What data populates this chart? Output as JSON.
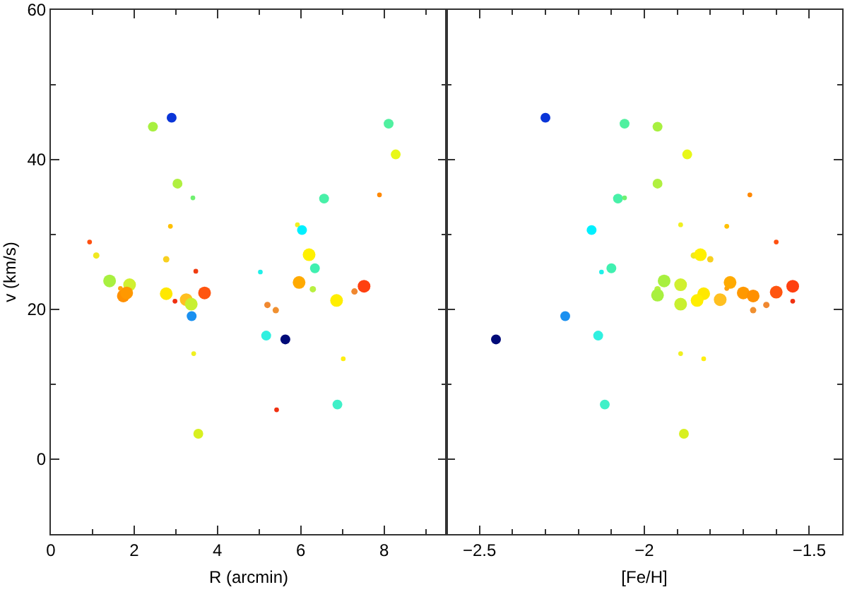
{
  "chart_data": [
    {
      "type": "bubble",
      "xlabel": "R (arcmin)",
      "ylabel": "v (km/s)",
      "marker": "circle",
      "x": [
        2.9,
        2.45,
        8.11,
        8.28,
        3.04,
        3.41,
        6.56,
        7.89,
        2.87,
        5.92,
        6.03,
        0.93,
        1.09,
        2.77,
        6.2,
        6.34,
        5.03,
        3.48,
        1.41,
        1.89,
        1.67,
        1.74,
        1.82,
        2.77,
        2.98,
        3.25,
        3.37,
        3.69,
        3.38,
        3.43,
        3.54,
        5.17,
        5.63,
        5.2,
        5.4,
        5.96,
        6.29,
        6.86,
        7.29,
        7.52,
        7.02,
        5.42,
        6.88
      ],
      "values": [
        45.6,
        44.4,
        44.8,
        40.7,
        36.8,
        34.9,
        34.8,
        35.3,
        31.1,
        31.3,
        30.6,
        29.0,
        27.2,
        26.7,
        27.3,
        25.5,
        25.0,
        25.1,
        23.8,
        23.3,
        22.8,
        21.8,
        22.2,
        22.1,
        21.1,
        21.3,
        20.7,
        22.2,
        19.1,
        14.1,
        3.4,
        16.5,
        16.0,
        20.6,
        19.9,
        23.6,
        22.7,
        21.2,
        22.4,
        23.1,
        13.4,
        6.6,
        7.3
      ],
      "sizes": [
        0.6,
        0.6,
        0.6,
        0.6,
        0.6,
        0.14,
        0.6,
        0.14,
        0.14,
        0.14,
        0.6,
        0.14,
        0.25,
        0.25,
        1,
        0.6,
        0.14,
        0.14,
        1,
        1,
        0.14,
        1,
        1,
        1,
        0.14,
        1,
        1,
        1,
        0.6,
        0.14,
        0.6,
        0.6,
        0.6,
        0.25,
        0.25,
        1,
        0.25,
        1,
        0.25,
        1,
        0.14,
        0.14,
        0.6
      ],
      "colors": [
        "#0a35d8",
        "#a8f040",
        "#50f0a0",
        "#e8f818",
        "#b0f040",
        "#70f070",
        "#48f0a8",
        "#ff8800",
        "#ffc000",
        "#f0f020",
        "#00f0ff",
        "#ff5010",
        "#f0e820",
        "#f8d020",
        "#fff000",
        "#40f0b0",
        "#20f0e8",
        "#f03c10",
        "#a8f040",
        "#d0f030",
        "#ffa010",
        "#ff9000",
        "#ff9800",
        "#ffe800",
        "#f03010",
        "#ffc020",
        "#c8f030",
        "#ff5510",
        "#1a90f0",
        "#f0f020",
        "#d8f020",
        "#30f0e0",
        "#000a78",
        "#f08830",
        "#f09030",
        "#ffaa00",
        "#b8f040",
        "#ffee00",
        "#f08830",
        "#ff4010",
        "#ffee10",
        "#f03010",
        "#40f0c8"
      ],
      "xlim": [
        0,
        9.5
      ],
      "ylim": [
        -10,
        60
      ],
      "xticks": [
        0,
        {
          "value": 1,
          "label": null
        },
        2,
        {
          "value": 3,
          "label": null
        },
        4,
        {
          "value": 5,
          "label": null
        },
        6,
        {
          "value": 7,
          "label": null
        },
        8,
        {
          "value": 9,
          "label": null
        }
      ],
      "yticks": [
        {
          "value": -10,
          "label": null
        },
        0,
        {
          "value": 10,
          "label": null
        },
        20,
        {
          "value": 30,
          "label": null
        },
        40,
        {
          "value": 50,
          "label": null
        },
        60
      ]
    },
    {
      "type": "bubble",
      "xlabel": "[Fe/H]",
      "marker": "circle",
      "tick_labels": "x",
      "x": [
        -2.3,
        -2.06,
        -1.96,
        -1.87,
        -1.96,
        -2.08,
        -2.06,
        -1.68,
        -1.89,
        -1.75,
        -2.16,
        -1.6,
        -1.85,
        -1.83,
        -1.8,
        -2.1,
        -2.13,
        -1.94,
        -1.89,
        -1.96,
        -1.96,
        -1.75,
        -1.74,
        -1.82,
        -1.84,
        -1.89,
        -1.77,
        -1.7,
        -1.67,
        -1.67,
        -1.63,
        -1.6,
        -1.55,
        -1.55,
        -2.24,
        -2.45,
        -2.14,
        -1.89,
        -1.82,
        -2.12,
        -1.88
      ],
      "values": [
        45.6,
        44.8,
        44.4,
        40.7,
        36.8,
        34.8,
        34.9,
        35.3,
        31.3,
        31.1,
        30.6,
        29.0,
        27.2,
        27.3,
        26.7,
        25.5,
        25.0,
        23.8,
        23.3,
        22.7,
        21.9,
        22.8,
        23.6,
        22.1,
        21.2,
        20.7,
        21.3,
        22.2,
        21.8,
        19.9,
        20.6,
        22.3,
        23.1,
        21.1,
        19.1,
        16.0,
        16.5,
        14.1,
        13.4,
        7.3,
        3.4
      ],
      "sizes": [
        0.6,
        0.6,
        0.6,
        0.6,
        0.6,
        0.6,
        0.14,
        0.14,
        0.14,
        0.14,
        0.6,
        0.14,
        0.25,
        1,
        0.25,
        0.6,
        0.14,
        1,
        1,
        0.25,
        1,
        0.14,
        1,
        1,
        1,
        1,
        1,
        1,
        1,
        0.25,
        0.25,
        1,
        1,
        0.14,
        0.6,
        0.6,
        0.6,
        0.14,
        0.14,
        0.6,
        0.6
      ],
      "colors": [
        "#0a35d8",
        "#50f0a0",
        "#a8f040",
        "#e8f818",
        "#b0f040",
        "#48f0a8",
        "#70f070",
        "#ff8800",
        "#f0f020",
        "#ffc000",
        "#00f0ff",
        "#ff5010",
        "#f0e820",
        "#fff000",
        "#f8d020",
        "#40f0b0",
        "#20f0e8",
        "#a8f040",
        "#d0f030",
        "#b8f040",
        "#a8f040",
        "#ffa010",
        "#ffaa00",
        "#ffe800",
        "#ffee00",
        "#c8f030",
        "#ffc020",
        "#ff9800",
        "#ff9000",
        "#f09030",
        "#f08830",
        "#ff5510",
        "#ff4010",
        "#f03010",
        "#1a90f0",
        "#000a78",
        "#30f0e0",
        "#f0f020",
        "#ffee10",
        "#40f0c8",
        "#d8f020"
      ],
      "xlim": [
        -2.6,
        -1.4
      ],
      "ylim": [
        -10,
        60
      ],
      "xticks": [
        {
          "value": -2.5,
          "label": "−2.5"
        },
        {
          "value": -2.4,
          "label": null
        },
        {
          "value": -2.3,
          "label": null
        },
        {
          "value": -2.2,
          "label": null
        },
        {
          "value": -2.1,
          "label": null
        },
        {
          "value": -2,
          "label": "−2"
        },
        {
          "value": -1.9,
          "label": null
        },
        {
          "value": -1.8,
          "label": null
        },
        {
          "value": -1.7,
          "label": null
        },
        {
          "value": -1.6,
          "label": null
        },
        {
          "value": -1.5,
          "label": "−1.5"
        }
      ],
      "yticks": [
        {
          "value": -10,
          "label": null
        },
        0,
        {
          "value": 10,
          "label": null
        },
        20,
        {
          "value": 30,
          "label": null
        },
        40,
        {
          "value": 50,
          "label": null
        },
        60
      ]
    }
  ]
}
